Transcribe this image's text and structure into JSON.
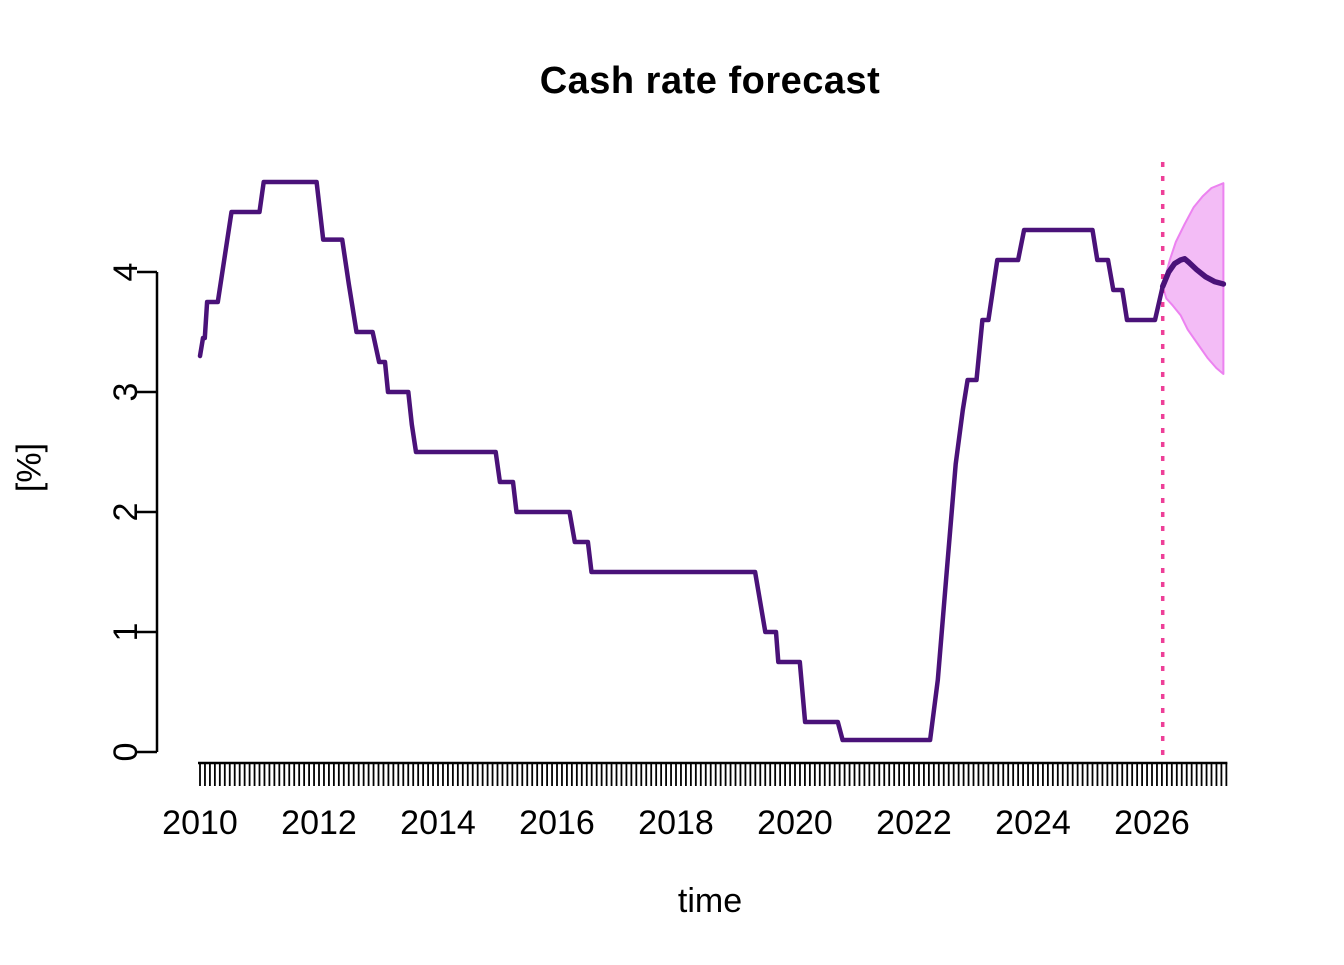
{
  "chart_data": {
    "type": "line",
    "title": "Cash rate forecast",
    "xlabel": "time",
    "ylabel": "[%]",
    "x_ticks": [
      2010,
      2012,
      2014,
      2016,
      2018,
      2020,
      2022,
      2024,
      2026
    ],
    "y_ticks": [
      0,
      1,
      2,
      3,
      4
    ],
    "xlim": [
      2010,
      2027.25
    ],
    "ylim": [
      0,
      4.94
    ],
    "grid": "off",
    "legend": "none",
    "rug": {
      "start": 2010.0,
      "end": 2027.25,
      "step_years": 0.0833333
    },
    "forecast_start_x": 2026.18,
    "series": [
      {
        "name": "cash-rate-history",
        "points": [
          [
            2010.0,
            3.3
          ],
          [
            2010.05,
            3.45
          ],
          [
            2010.08,
            3.45
          ],
          [
            2010.12,
            3.75
          ],
          [
            2010.3,
            3.75
          ],
          [
            2010.53,
            4.5
          ],
          [
            2011.0,
            4.5
          ],
          [
            2011.07,
            4.75
          ],
          [
            2011.96,
            4.75
          ],
          [
            2012.07,
            4.27
          ],
          [
            2012.39,
            4.27
          ],
          [
            2012.5,
            3.9
          ],
          [
            2012.63,
            3.5
          ],
          [
            2012.9,
            3.5
          ],
          [
            2013.01,
            3.25
          ],
          [
            2013.11,
            3.25
          ],
          [
            2013.16,
            3.0
          ],
          [
            2013.5,
            3.0
          ],
          [
            2013.56,
            2.73
          ],
          [
            2013.63,
            2.5
          ],
          [
            2014.97,
            2.5
          ],
          [
            2015.04,
            2.25
          ],
          [
            2015.26,
            2.25
          ],
          [
            2015.32,
            2.0
          ],
          [
            2016.21,
            2.0
          ],
          [
            2016.3,
            1.75
          ],
          [
            2016.52,
            1.75
          ],
          [
            2016.58,
            1.5
          ],
          [
            2019.33,
            1.5
          ],
          [
            2019.5,
            1.0
          ],
          [
            2019.68,
            1.0
          ],
          [
            2019.72,
            0.75
          ],
          [
            2020.08,
            0.75
          ],
          [
            2020.17,
            0.25
          ],
          [
            2020.72,
            0.25
          ],
          [
            2020.8,
            0.1
          ],
          [
            2022.27,
            0.1
          ],
          [
            2022.4,
            0.6
          ],
          [
            2022.55,
            1.5
          ],
          [
            2022.7,
            2.4
          ],
          [
            2022.82,
            2.85
          ],
          [
            2022.9,
            3.1
          ],
          [
            2023.05,
            3.1
          ],
          [
            2023.15,
            3.6
          ],
          [
            2023.25,
            3.6
          ],
          [
            2023.4,
            4.1
          ],
          [
            2023.75,
            4.1
          ],
          [
            2023.85,
            4.35
          ],
          [
            2025.0,
            4.35
          ],
          [
            2025.08,
            4.1
          ],
          [
            2025.26,
            4.1
          ],
          [
            2025.35,
            3.85
          ],
          [
            2025.5,
            3.85
          ],
          [
            2025.58,
            3.6
          ],
          [
            2026.05,
            3.6
          ],
          [
            2026.18,
            3.88
          ]
        ]
      },
      {
        "name": "forecast-mean",
        "points": [
          [
            2026.18,
            3.88
          ],
          [
            2026.28,
            4.0
          ],
          [
            2026.38,
            4.07
          ],
          [
            2026.48,
            4.1
          ],
          [
            2026.55,
            4.11
          ],
          [
            2026.62,
            4.08
          ],
          [
            2026.75,
            4.02
          ],
          [
            2026.9,
            3.96
          ],
          [
            2027.05,
            3.92
          ],
          [
            2027.2,
            3.9
          ]
        ]
      }
    ],
    "band": {
      "name": "forecast-interval",
      "upper": [
        [
          2026.18,
          3.88
        ],
        [
          2026.3,
          4.1
        ],
        [
          2026.4,
          4.25
        ],
        [
          2026.55,
          4.4
        ],
        [
          2026.7,
          4.54
        ],
        [
          2026.85,
          4.63
        ],
        [
          2027.0,
          4.7
        ],
        [
          2027.2,
          4.74
        ]
      ],
      "lower": [
        [
          2026.18,
          3.88
        ],
        [
          2026.24,
          3.78
        ],
        [
          2026.35,
          3.72
        ],
        [
          2026.48,
          3.64
        ],
        [
          2026.6,
          3.52
        ],
        [
          2026.77,
          3.4
        ],
        [
          2026.94,
          3.28
        ],
        [
          2027.08,
          3.2
        ],
        [
          2027.2,
          3.15
        ]
      ]
    },
    "colors": {
      "line": "#4a1279",
      "band_fill": "#f3bcf6",
      "band_edge": "#ec82f0",
      "vline": "#ee3f98",
      "axis": "#000000"
    }
  }
}
